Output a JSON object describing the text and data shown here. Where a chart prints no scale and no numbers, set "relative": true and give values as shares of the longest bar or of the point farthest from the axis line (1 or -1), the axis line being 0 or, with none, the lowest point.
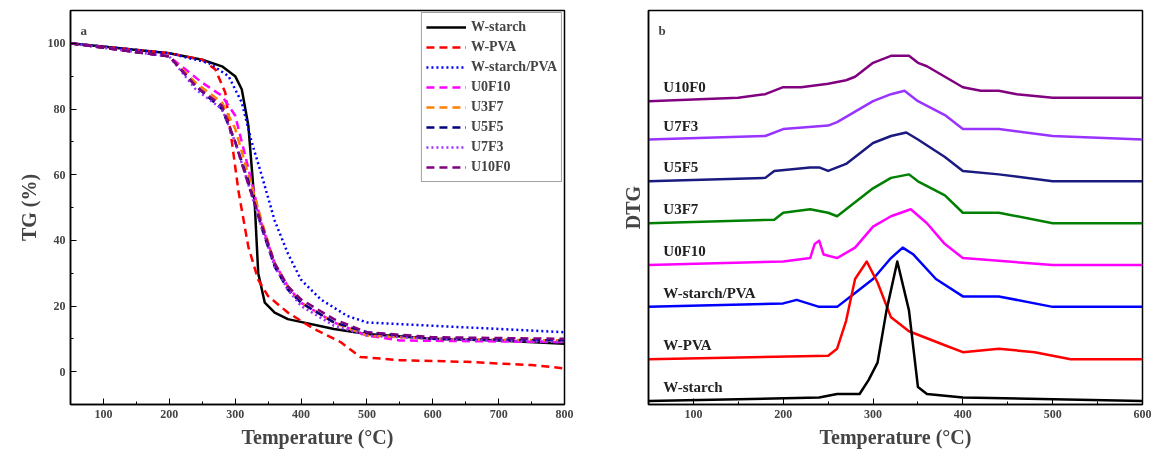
{
  "chart_data": [
    {
      "type": "line",
      "xlabel": "Temperature (°C)",
      "ylabel": "TG (%)",
      "annotations": [
        "a"
      ],
      "xlim": [
        50,
        800
      ],
      "ylim": [
        -10,
        110
      ],
      "xticks": [
        100,
        200,
        300,
        400,
        500,
        600,
        700,
        800
      ],
      "yticks": [
        0,
        20,
        40,
        60,
        80,
        100
      ],
      "legend": "top right",
      "grid": false,
      "series": [
        {
          "name": "W-starch",
          "color": "#000000",
          "line_style": "solid",
          "x": [
            50,
            200,
            250,
            280,
            300,
            310,
            320,
            330,
            335,
            345,
            360,
            380,
            450,
            500,
            600,
            700,
            800
          ],
          "values": [
            100,
            97,
            95,
            93,
            90,
            86,
            75,
            50,
            30,
            21,
            18,
            16,
            13,
            11.5,
            10,
            9.5,
            8.5
          ]
        },
        {
          "name": "W-PVA",
          "color": "#ff0000",
          "line_style": "dashed",
          "x": [
            50,
            200,
            250,
            270,
            285,
            295,
            305,
            320,
            335,
            350,
            380,
            420,
            460,
            490,
            550,
            650,
            750,
            800
          ],
          "values": [
            100,
            97,
            95,
            92,
            85,
            70,
            55,
            38,
            28,
            23,
            18,
            13,
            9,
            4.5,
            3.5,
            3,
            2,
            1
          ]
        },
        {
          "name": "W-starch/PVA",
          "color": "#0000ff",
          "line_style": "dotted",
          "x": [
            50,
            200,
            260,
            290,
            310,
            325,
            340,
            360,
            380,
            400,
            430,
            470,
            500,
            600,
            700,
            800
          ],
          "values": [
            100,
            97,
            94,
            90,
            82,
            70,
            60,
            46,
            36,
            28,
            22,
            17,
            15,
            14,
            13,
            12
          ]
        },
        {
          "name": "U0F10",
          "color": "#ff00ff",
          "line_style": "dashed",
          "x": [
            50,
            200,
            250,
            280,
            300,
            320,
            340,
            360,
            380,
            400,
            450,
            500,
            550,
            800
          ],
          "values": [
            100,
            96,
            88,
            84,
            78,
            62,
            45,
            33,
            26,
            21,
            15,
            11,
            9.5,
            9
          ]
        },
        {
          "name": "U3F7",
          "color": "#ff8000",
          "line_style": "dashed",
          "x": [
            50,
            200,
            240,
            280,
            300,
            320,
            340,
            360,
            380,
            400,
            450,
            500,
            600,
            800
          ],
          "values": [
            100,
            96,
            88,
            82,
            74,
            60,
            46,
            33,
            26,
            21,
            15,
            11,
            10,
            9.5
          ]
        },
        {
          "name": "U5F5",
          "color": "#000080",
          "line_style": "dashed",
          "x": [
            50,
            200,
            240,
            280,
            300,
            320,
            340,
            360,
            380,
            400,
            450,
            500,
            600,
            800
          ],
          "values": [
            100,
            96,
            87,
            80,
            70,
            58,
            44,
            32,
            25,
            21,
            15,
            12,
            10,
            9.5
          ]
        },
        {
          "name": "U7F3",
          "color": "#9933ff",
          "line_style": "dotted",
          "x": [
            50,
            200,
            240,
            280,
            300,
            320,
            340,
            360,
            380,
            400,
            450,
            500,
            600,
            800
          ],
          "values": [
            100,
            96,
            86,
            80,
            70,
            57,
            44,
            32,
            25,
            20,
            14,
            11,
            10,
            9
          ]
        },
        {
          "name": "U10F0",
          "color": "#800080",
          "line_style": "dashed",
          "x": [
            50,
            200,
            240,
            280,
            300,
            320,
            340,
            360,
            380,
            400,
            450,
            500,
            600,
            800
          ],
          "values": [
            100,
            96,
            87,
            81,
            70,
            57,
            45,
            33,
            26,
            22,
            16,
            12,
            10.5,
            10
          ]
        }
      ]
    },
    {
      "type": "line",
      "relative": true,
      "xlabel": "Temperature (°C)",
      "ylabel": "DTG",
      "annotations": [
        "b"
      ],
      "xlim": [
        50,
        600
      ],
      "xticks": [
        100,
        200,
        300,
        400,
        500,
        600
      ],
      "tick_labels": "x",
      "legend": false,
      "grid": false,
      "series": [
        {
          "name": "U10F0",
          "color": "#800080",
          "x": [
            50,
            150,
            180,
            200,
            220,
            250,
            270,
            280,
            290,
            300,
            310,
            320,
            330,
            340,
            350,
            360,
            380,
            400,
            420,
            440,
            460,
            500,
            550,
            600
          ],
          "values": [
            0.87,
            0.88,
            0.89,
            0.91,
            0.91,
            0.92,
            0.93,
            0.94,
            0.96,
            0.98,
            0.99,
            1.0,
            1.0,
            1.0,
            0.98,
            0.97,
            0.94,
            0.91,
            0.9,
            0.9,
            0.89,
            0.88,
            0.88,
            0.88
          ]
        },
        {
          "name": "U7F3",
          "color": "#9933ff",
          "x": [
            50,
            180,
            200,
            250,
            260,
            280,
            300,
            320,
            335,
            350,
            380,
            400,
            440,
            500,
            600
          ],
          "values": [
            0.76,
            0.77,
            0.79,
            0.8,
            0.81,
            0.84,
            0.87,
            0.89,
            0.9,
            0.87,
            0.83,
            0.79,
            0.79,
            0.77,
            0.76
          ]
        },
        {
          "name": "U5F5",
          "color": "#1a1a80",
          "x": [
            50,
            180,
            190,
            230,
            240,
            250,
            270,
            300,
            320,
            337,
            350,
            380,
            400,
            440,
            500,
            600
          ],
          "values": [
            0.64,
            0.65,
            0.67,
            0.68,
            0.68,
            0.67,
            0.69,
            0.75,
            0.77,
            0.78,
            0.76,
            0.71,
            0.67,
            0.66,
            0.64,
            0.64
          ]
        },
        {
          "name": "U3F7",
          "color": "#008000",
          "x": [
            50,
            190,
            200,
            230,
            250,
            260,
            280,
            300,
            320,
            340,
            350,
            380,
            400,
            440,
            500,
            600
          ],
          "values": [
            0.52,
            0.53,
            0.55,
            0.56,
            0.55,
            0.54,
            0.58,
            0.62,
            0.65,
            0.66,
            0.64,
            0.6,
            0.55,
            0.55,
            0.52,
            0.52
          ]
        },
        {
          "name": "U0F10",
          "color": "#ff00ff",
          "x": [
            50,
            200,
            230,
            235,
            240,
            245,
            260,
            280,
            300,
            320,
            342,
            360,
            380,
            400,
            500,
            600
          ],
          "values": [
            0.4,
            0.41,
            0.42,
            0.46,
            0.47,
            0.43,
            0.42,
            0.45,
            0.51,
            0.54,
            0.56,
            0.52,
            0.46,
            0.42,
            0.4,
            0.4
          ]
        },
        {
          "name": "W-starch/PVA",
          "color": "#0000ff",
          "x": [
            50,
            200,
            215,
            240,
            260,
            280,
            300,
            320,
            333,
            345,
            370,
            400,
            440,
            500,
            600
          ],
          "values": [
            0.28,
            0.29,
            0.3,
            0.28,
            0.28,
            0.32,
            0.36,
            0.42,
            0.45,
            0.43,
            0.36,
            0.31,
            0.31,
            0.28,
            0.28
          ]
        },
        {
          "name": "W-PVA",
          "color": "#ff0000",
          "x": [
            50,
            250,
            260,
            270,
            280,
            293,
            305,
            320,
            340,
            380,
            400,
            440,
            480,
            520,
            600
          ],
          "values": [
            0.13,
            0.14,
            0.16,
            0.24,
            0.36,
            0.41,
            0.35,
            0.25,
            0.21,
            0.17,
            0.15,
            0.16,
            0.15,
            0.13,
            0.13
          ]
        },
        {
          "name": "W-starch",
          "color": "#000000",
          "x": [
            50,
            240,
            260,
            285,
            295,
            305,
            315,
            327,
            340,
            350,
            360,
            400,
            600
          ],
          "values": [
            0.01,
            0.02,
            0.03,
            0.03,
            0.07,
            0.12,
            0.27,
            0.41,
            0.27,
            0.05,
            0.03,
            0.02,
            0.01
          ]
        }
      ]
    }
  ]
}
